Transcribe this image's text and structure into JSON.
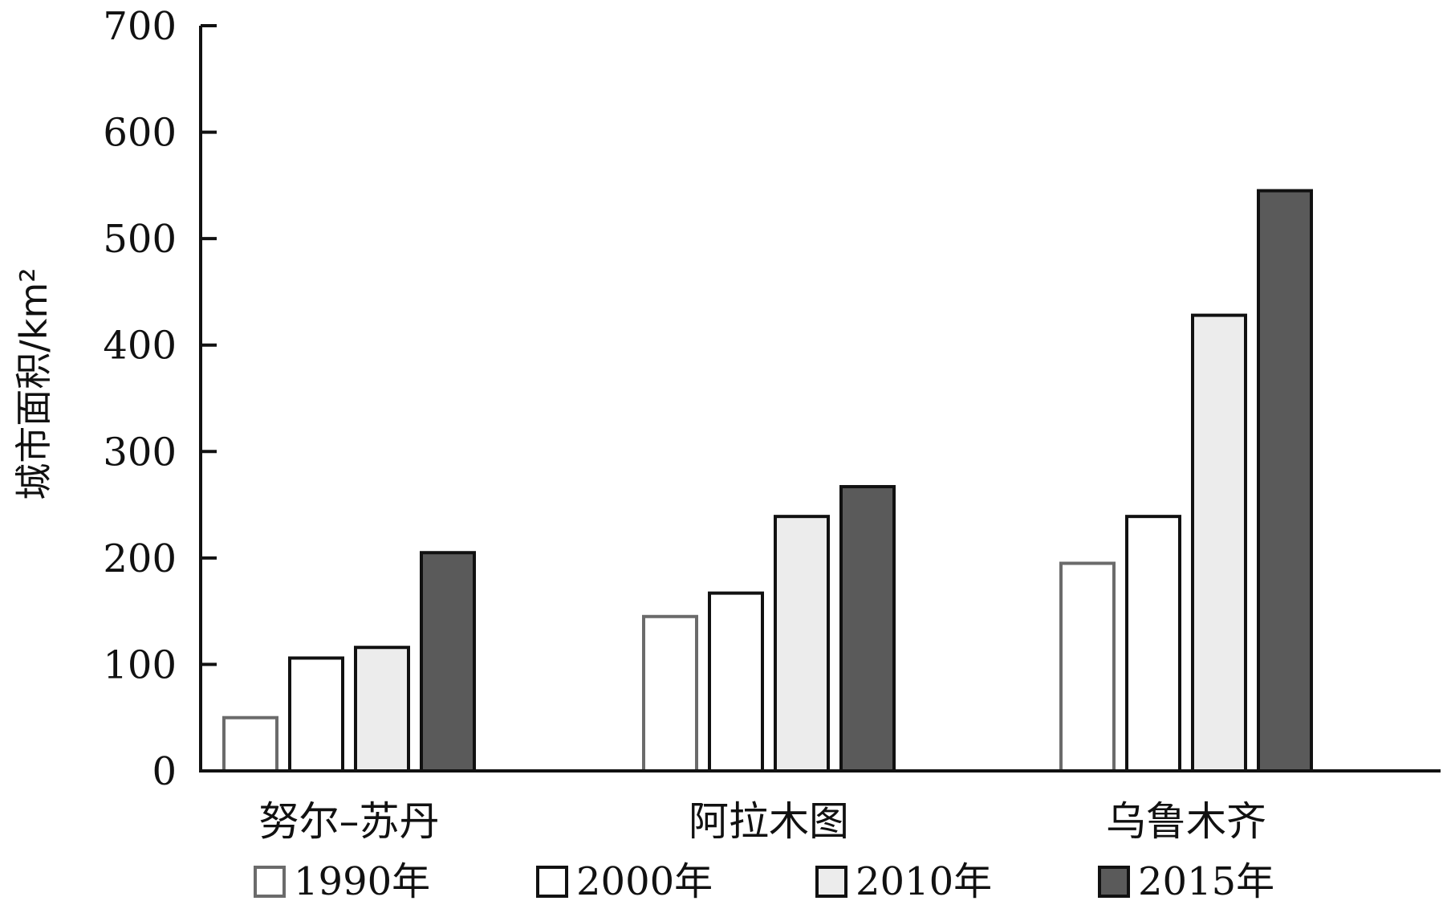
{
  "chart_data": {
    "type": "bar",
    "title": "",
    "xlabel": "",
    "ylabel": "城市面积/km²",
    "ylim": [
      0,
      700
    ],
    "yticks": [
      0,
      100,
      200,
      300,
      400,
      500,
      600,
      700
    ],
    "categories": [
      "努尔–苏丹",
      "阿拉木图",
      "乌鲁木齐"
    ],
    "series": [
      {
        "name": "1990年",
        "values": [
          50,
          145,
          195
        ],
        "fill": "#ffffff",
        "stroke": "#6b6b6b"
      },
      {
        "name": "2000年",
        "values": [
          106,
          167,
          239
        ],
        "fill": "#ffffff",
        "stroke": "#111111"
      },
      {
        "name": "2010年",
        "values": [
          116,
          239,
          428
        ],
        "fill": "#ececec",
        "stroke": "#111111"
      },
      {
        "name": "2015年",
        "values": [
          205,
          267,
          545
        ],
        "fill": "#5a5a5a",
        "stroke": "#111111"
      }
    ],
    "legend_position": "bottom",
    "grid": false
  }
}
